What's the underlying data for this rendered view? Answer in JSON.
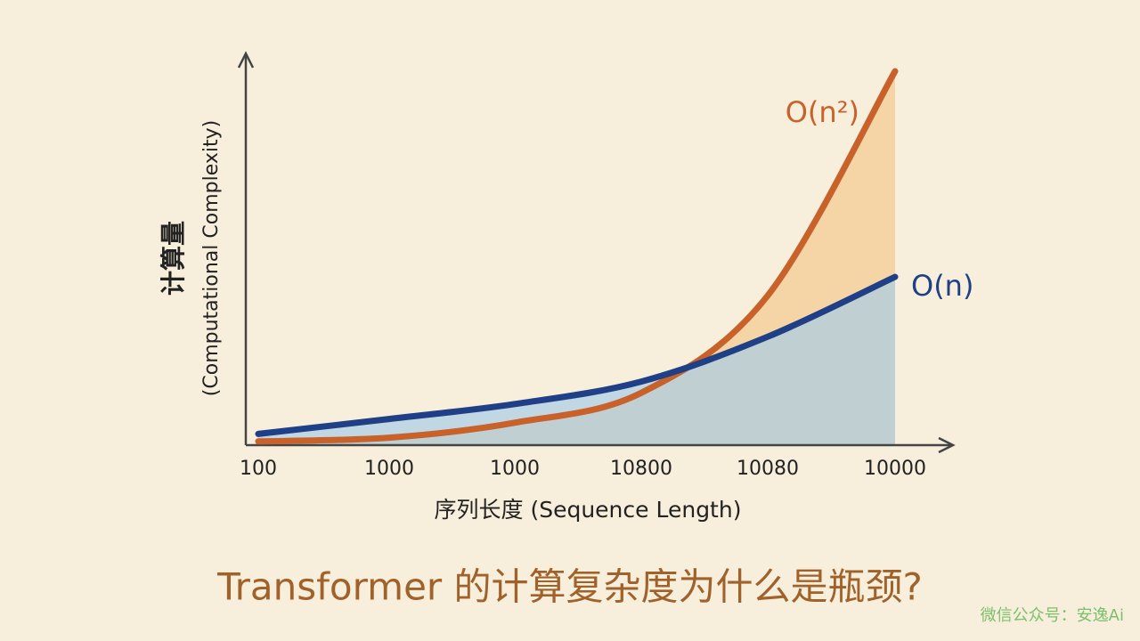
{
  "chart_data": {
    "type": "line",
    "title": "Transformer 的计算复杂度为什么是瓶颈?",
    "x_label": "序列长度 (Sequence Length)",
    "y_label": "计算量",
    "y_label_sub": "(Computational Complexity)",
    "watermark": "微信公众号：安逸Ai",
    "categories": [
      "100",
      "1000",
      "1000",
      "10800",
      "10080",
      "10000"
    ],
    "series": [
      {
        "name": "O(n²)",
        "color": "#c8622a",
        "fill": "#f3c98f",
        "values": [
          1,
          2,
          6,
          14,
          40,
          100
        ]
      },
      {
        "name": "O(n)",
        "color": "#1f3f86",
        "fill": "#a9cde6",
        "values": [
          3,
          7,
          11,
          17,
          29,
          45
        ]
      }
    ],
    "ylim": [
      0,
      100
    ]
  }
}
